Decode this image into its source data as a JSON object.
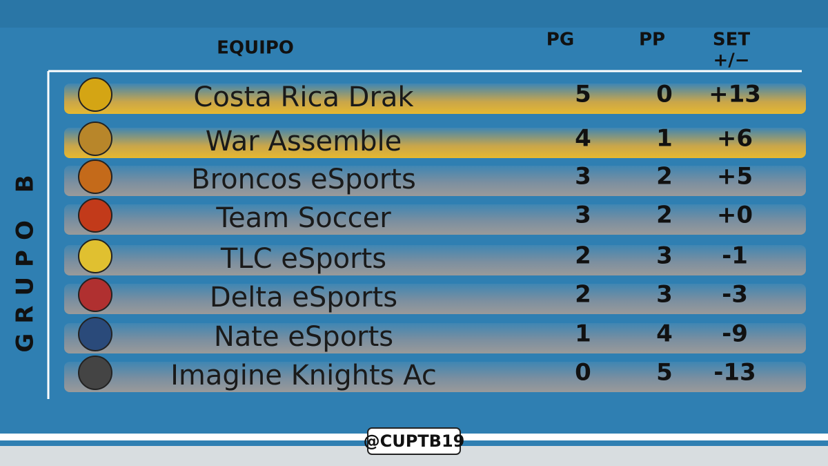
{
  "table": {
    "side_label": "GRUPO B",
    "headers": {
      "team": "EQUIPO",
      "won": "PG",
      "lost": "PP",
      "set_top": "SET",
      "set_bottom": "+/−"
    },
    "rows": [
      {
        "team": "Costa Rica Drak",
        "won": 5,
        "lost": 0,
        "set": "+13"
      },
      {
        "team": "War Assemble",
        "won": 4,
        "lost": 1,
        "set": "+6"
      },
      {
        "team": "Broncos eSports",
        "won": 3,
        "lost": 2,
        "set": "+5"
      },
      {
        "team": "Team Soccer",
        "won": 3,
        "lost": 2,
        "set": "+0"
      },
      {
        "team": "TLC eSports",
        "won": 2,
        "lost": 3,
        "set": "-1"
      },
      {
        "team": "Delta eSports",
        "won": 2,
        "lost": 3,
        "set": "-3"
      },
      {
        "team": "Nate eSports",
        "won": 1,
        "lost": 4,
        "set": "-9"
      },
      {
        "team": "Imagine Knights Ac",
        "won": 0,
        "lost": 5,
        "set": "-13"
      }
    ]
  },
  "footer": {
    "handle": "@CUPTB19"
  }
}
